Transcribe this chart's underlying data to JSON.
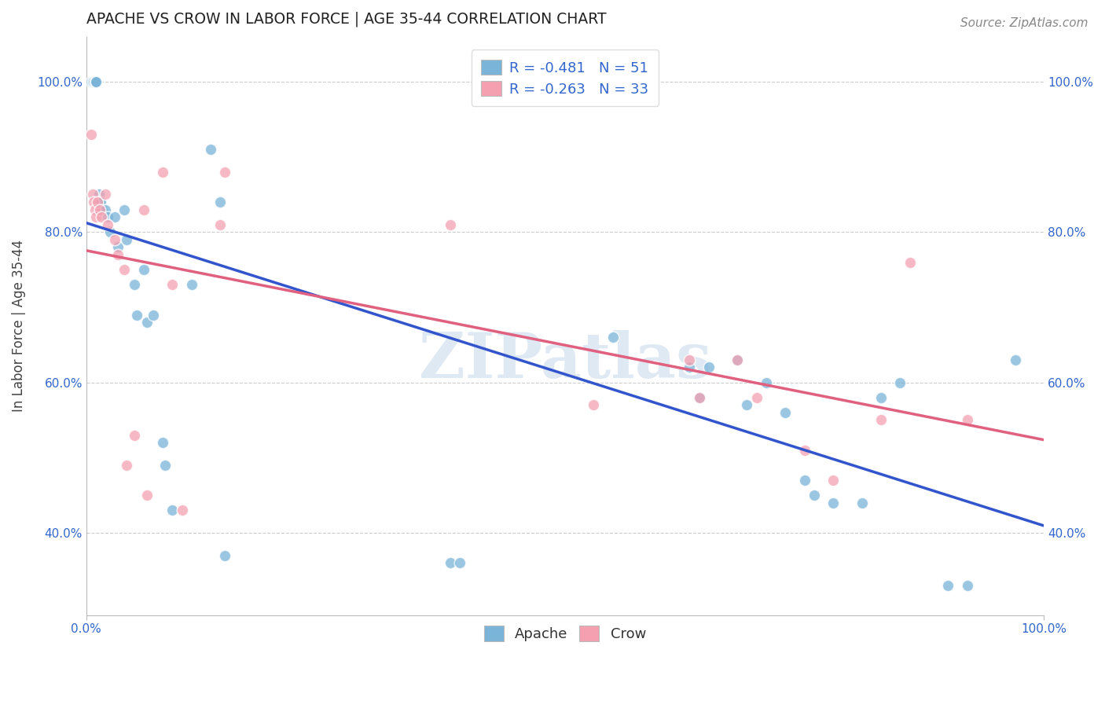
{
  "title": "APACHE VS CROW IN LABOR FORCE | AGE 35-44 CORRELATION CHART",
  "source": "Source: ZipAtlas.com",
  "ylabel": "In Labor Force | Age 35-44",
  "xlim": [
    0.0,
    1.0
  ],
  "ylim": [
    0.29,
    1.06
  ],
  "apache_color": "#7ab4d8",
  "crow_color": "#f4a0b0",
  "apache_line_color": "#3355cc",
  "crow_line_color": "#e06080",
  "watermark_text": "ZIPatlas",
  "legend_apache": "Apache",
  "legend_crow": "Crow",
  "legend_r_apache": "-0.481",
  "legend_n_apache": "51",
  "legend_r_crow": "-0.263",
  "legend_n_crow": "33",
  "apache_x": [
    0.005,
    0.007,
    0.008,
    0.009,
    0.01,
    0.01,
    0.01,
    0.012,
    0.013,
    0.014,
    0.015,
    0.016,
    0.017,
    0.02,
    0.022,
    0.025,
    0.03,
    0.033,
    0.04,
    0.042,
    0.05,
    0.053,
    0.06,
    0.063,
    0.07,
    0.08,
    0.082,
    0.09,
    0.11,
    0.13,
    0.14,
    0.145,
    0.38,
    0.39,
    0.55,
    0.63,
    0.64,
    0.65,
    0.68,
    0.69,
    0.71,
    0.73,
    0.75,
    0.76,
    0.78,
    0.81,
    0.83,
    0.85,
    0.9,
    0.92,
    0.97
  ],
  "apache_y": [
    1.0,
    1.0,
    1.0,
    1.0,
    1.0,
    1.0,
    1.0,
    0.84,
    0.85,
    0.84,
    0.84,
    0.83,
    0.83,
    0.83,
    0.82,
    0.8,
    0.82,
    0.78,
    0.83,
    0.79,
    0.73,
    0.69,
    0.75,
    0.68,
    0.69,
    0.52,
    0.49,
    0.43,
    0.73,
    0.91,
    0.84,
    0.37,
    0.36,
    0.36,
    0.66,
    0.62,
    0.58,
    0.62,
    0.63,
    0.57,
    0.6,
    0.56,
    0.47,
    0.45,
    0.44,
    0.44,
    0.58,
    0.6,
    0.33,
    0.33,
    0.63
  ],
  "crow_x": [
    0.005,
    0.007,
    0.008,
    0.009,
    0.01,
    0.012,
    0.014,
    0.016,
    0.02,
    0.022,
    0.03,
    0.033,
    0.04,
    0.042,
    0.05,
    0.06,
    0.063,
    0.08,
    0.09,
    0.1,
    0.14,
    0.145,
    0.38,
    0.53,
    0.63,
    0.64,
    0.68,
    0.7,
    0.75,
    0.78,
    0.83,
    0.86,
    0.92
  ],
  "crow_y": [
    0.93,
    0.85,
    0.84,
    0.83,
    0.82,
    0.84,
    0.83,
    0.82,
    0.85,
    0.81,
    0.79,
    0.77,
    0.75,
    0.49,
    0.53,
    0.83,
    0.45,
    0.88,
    0.73,
    0.43,
    0.81,
    0.88,
    0.81,
    0.57,
    0.63,
    0.58,
    0.63,
    0.58,
    0.51,
    0.47,
    0.55,
    0.76,
    0.55
  ],
  "marker_size": 110,
  "title_fontsize": 13.5,
  "axis_label_fontsize": 12,
  "tick_fontsize": 11,
  "legend_fontsize": 13,
  "source_fontsize": 11,
  "yticks": [
    0.4,
    0.6,
    0.8,
    1.0
  ],
  "ytick_labels": [
    "40.0%",
    "60.0%",
    "80.0%",
    "100.0%"
  ],
  "xticks": [
    0.0,
    1.0
  ],
  "xtick_labels": [
    "0.0%",
    "100.0%"
  ]
}
